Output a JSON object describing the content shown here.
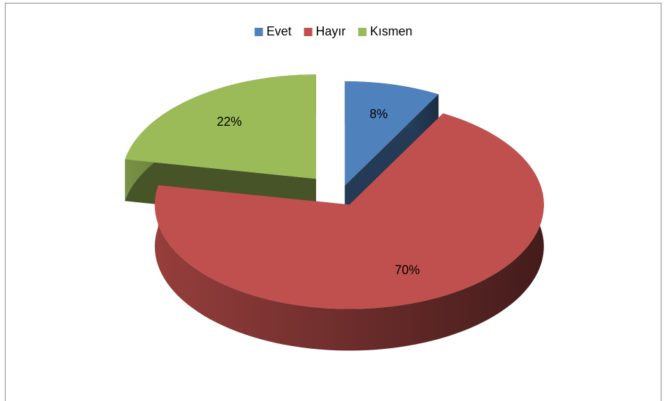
{
  "chart_data": {
    "type": "pie",
    "categories": [
      "Evet",
      "Hayır",
      "Kısmen"
    ],
    "values": [
      8,
      70,
      22
    ],
    "value_labels": [
      "8%",
      "70%",
      "22%"
    ],
    "colors": [
      "#4f81bd",
      "#c0504d",
      "#9bbb59"
    ],
    "legend": "top",
    "three_d": true,
    "exploded": true
  }
}
